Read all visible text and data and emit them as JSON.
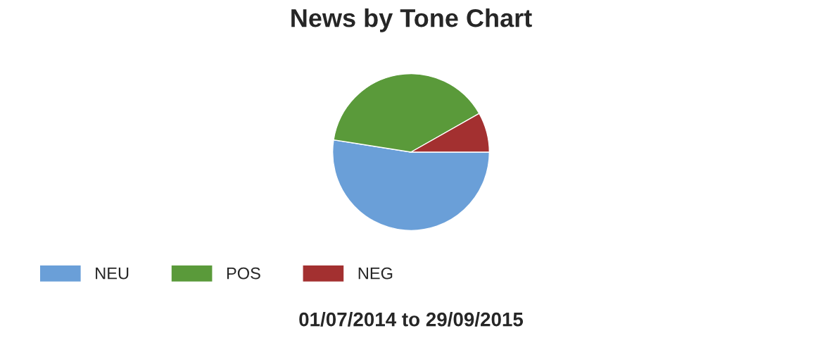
{
  "chart_data": {
    "type": "pie",
    "title": "News by Tone Chart",
    "subtitle": "01/07/2014 to 29/09/2015",
    "categories": [
      "NEU",
      "POS",
      "NEG"
    ],
    "values": [
      52.5,
      39.3,
      8.2
    ],
    "colors": [
      "#6a9fd8",
      "#5a9a3a",
      "#a33030"
    ],
    "legend": "bottom left"
  }
}
